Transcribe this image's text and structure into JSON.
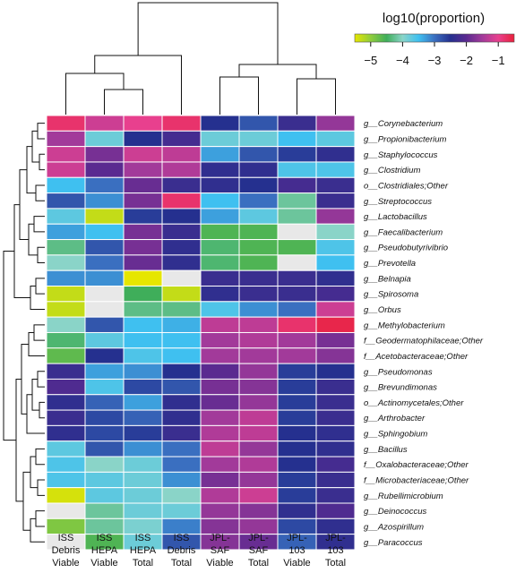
{
  "chart_data": {
    "type": "heatmap",
    "title": "",
    "legend_title": "log10(proportion)",
    "scale_ticks": [
      "−5",
      "−4",
      "−3",
      "−2",
      "−1"
    ],
    "scale_range": [
      -5.5,
      -0.5
    ],
    "colormap": [
      "#e6e600",
      "#8fcd3c",
      "#3fae5a",
      "#8ad4c8",
      "#3fc0f0",
      "#3a6fc0",
      "#25308f",
      "#5a2a90",
      "#a23a9a",
      "#e8408e",
      "#e8203a"
    ],
    "columns": [
      [
        "ISS",
        "Debris",
        "Viable"
      ],
      [
        "ISS",
        "HEPA",
        "Viable"
      ],
      [
        "ISS",
        "HEPA",
        "Total"
      ],
      [
        "ISS",
        "Debris",
        "Total"
      ],
      [
        "JPL-",
        "SAF",
        "Viable"
      ],
      [
        "JPL-",
        "SAF",
        "Total"
      ],
      [
        "JPL-",
        "103",
        "Viable"
      ],
      [
        "JPL-",
        "103",
        "Total"
      ]
    ],
    "rows": [
      "g__Corynebacterium",
      "g__Propionibacterium",
      "g__Staphylococcus",
      "g__Clostridium",
      "o__Clostridiales;Other",
      "g__Streptococcus",
      "g__Lactobacillus",
      "g__Faecalibacterium",
      "g__Pseudobutyrivibrio",
      "g__Prevotella",
      "g__Belnapia",
      "g__Spirosoma",
      "g__Orbus",
      "g__Methylobacterium",
      "f__Geodermatophilaceae;Other",
      "f__Acetobacteraceae;Other",
      "g__Pseudomonas",
      "g__Brevundimonas",
      "o__Actinomycetales;Other",
      "g__Arthrobacter",
      "g__Sphingobium",
      "g__Bacillus",
      "f__Oxalobacteraceae;Other",
      "f__Microbacteriaceae;Other",
      "g__Rubellimicrobium",
      "g__Deinococcus",
      "g__Azospirillum",
      "g__Paracoccus"
    ],
    "values": [
      [
        -0.8,
        -1.2,
        -1.0,
        -0.8,
        -2.5,
        -2.8,
        -2.3,
        -1.6
      ],
      [
        -1.5,
        -3.8,
        -2.5,
        -2.2,
        -3.8,
        -3.8,
        -3.5,
        -3.7
      ],
      [
        -1.2,
        -1.8,
        -1.2,
        -1.3,
        -3.3,
        -2.8,
        -2.6,
        -2.4
      ],
      [
        -1.2,
        -2.0,
        -1.5,
        -1.4,
        -2.4,
        -2.4,
        -3.6,
        -3.6
      ],
      [
        -3.5,
        -3.0,
        -1.9,
        -2.3,
        -2.4,
        -2.5,
        -2.2,
        -2.3
      ],
      [
        -2.8,
        -3.2,
        -1.8,
        -0.8,
        -3.5,
        -3.0,
        -4.2,
        -2.3
      ],
      [
        -3.7,
        -5.3,
        -2.6,
        -2.5,
        -3.3,
        -3.7,
        -4.2,
        -1.6
      ],
      [
        -3.3,
        -3.5,
        -1.8,
        -2.3,
        -4.6,
        -4.6,
        null,
        -4.0
      ],
      [
        -4.3,
        -2.8,
        -1.8,
        -2.4,
        -4.4,
        -4.6,
        -4.6,
        -3.6
      ],
      [
        -4.0,
        -3.0,
        -1.9,
        -2.4,
        -4.4,
        -4.6,
        null,
        -3.5
      ],
      [
        -3.2,
        -3.2,
        -5.5,
        null,
        -2.3,
        -2.3,
        -2.3,
        -2.4
      ],
      [
        -5.3,
        null,
        -4.5,
        -5.3,
        -2.4,
        -2.3,
        -2.3,
        -2.2
      ],
      [
        -5.3,
        null,
        -4.3,
        -4.3,
        -3.6,
        -3.2,
        -3.0,
        -1.2
      ],
      [
        -4.0,
        -2.8,
        -3.5,
        -3.4,
        -1.3,
        -1.3,
        -0.8,
        -0.6
      ],
      [
        -4.4,
        -3.7,
        -3.5,
        -3.5,
        -1.5,
        -1.4,
        -1.5,
        -1.8
      ],
      [
        -4.7,
        -2.5,
        -3.6,
        -3.5,
        -1.5,
        -1.5,
        -1.5,
        -1.7
      ],
      [
        -2.3,
        -3.3,
        -3.2,
        -2.5,
        -2.0,
        -1.6,
        -2.6,
        -2.5
      ],
      [
        -2.1,
        -3.6,
        -2.7,
        -2.8,
        -1.8,
        -1.7,
        -2.6,
        -2.3
      ],
      [
        -2.4,
        -2.9,
        -3.3,
        -2.4,
        -1.9,
        -1.6,
        -2.6,
        -2.3
      ],
      [
        -2.3,
        -2.7,
        -2.9,
        -2.4,
        -1.5,
        -1.3,
        -2.6,
        -2.3
      ],
      [
        -2.4,
        -2.7,
        -2.6,
        -2.3,
        -1.4,
        -1.3,
        -2.5,
        -2.4
      ],
      [
        -3.7,
        -2.8,
        -3.2,
        -3.0,
        -1.3,
        -1.6,
        -2.5,
        -2.4
      ],
      [
        -3.6,
        -4.0,
        -3.8,
        -3.0,
        -1.5,
        -1.4,
        -2.5,
        -2.2
      ],
      [
        -3.6,
        -3.7,
        -3.8,
        -3.2,
        -1.8,
        -1.6,
        -2.6,
        -2.3
      ],
      [
        -5.4,
        -3.7,
        -3.8,
        -4.0,
        -1.4,
        -1.2,
        -2.6,
        -2.3
      ],
      [
        null,
        -4.2,
        -3.8,
        -3.8,
        -1.6,
        -1.7,
        -2.4,
        -2.1
      ],
      [
        -4.9,
        -4.2,
        -3.9,
        -3.1,
        -1.7,
        -1.6,
        -2.7,
        -2.4
      ],
      [
        null,
        -4.6,
        -3.8,
        -2.8,
        -1.7,
        -1.9,
        -2.9,
        -2.4
      ]
    ],
    "missing_color": "#e8e8e8",
    "x_dendrogram": true,
    "y_dendrogram": true
  }
}
